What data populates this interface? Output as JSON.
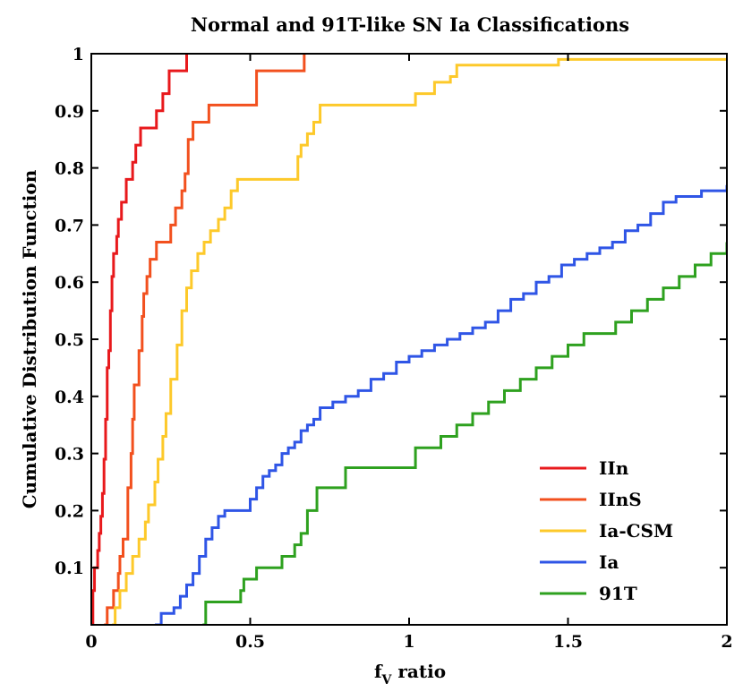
{
  "chart_data": {
    "type": "line",
    "step": true,
    "title": "Normal and 91T-like SN Ia Classifications",
    "xlabel_main": "f",
    "xlabel_sub": "V",
    "xlabel_rest": " ratio",
    "ylabel": "Cumulative Distribution Function",
    "xlim": [
      0,
      2
    ],
    "ylim": [
      0,
      1
    ],
    "xticks": [
      0,
      0.5,
      1,
      1.5,
      2
    ],
    "xtick_labels": [
      "0",
      "0.5",
      "1",
      "1.5",
      "2"
    ],
    "yticks": [
      0.1,
      0.2,
      0.3,
      0.4,
      0.5,
      0.6,
      0.7,
      0.8,
      0.9,
      1
    ],
    "ytick_labels": [
      "0.1",
      "0.2",
      "0.3",
      "0.4",
      "0.5",
      "0.6",
      "0.7",
      "0.8",
      "0.9",
      "1"
    ],
    "legend_position": "bottom-right",
    "series": [
      {
        "name": "IIn",
        "color": "#e8191c",
        "x": [
          0.0,
          0.005,
          0.01,
          0.02,
          0.025,
          0.03,
          0.035,
          0.04,
          0.045,
          0.05,
          0.055,
          0.06,
          0.065,
          0.07,
          0.075,
          0.08,
          0.085,
          0.095,
          0.11,
          0.13,
          0.14,
          0.155,
          0.175,
          0.205,
          0.225,
          0.245,
          0.275,
          0.3
        ],
        "y": [
          0.0,
          0.06,
          0.1,
          0.13,
          0.16,
          0.19,
          0.23,
          0.29,
          0.36,
          0.45,
          0.48,
          0.55,
          0.61,
          0.65,
          0.65,
          0.68,
          0.71,
          0.74,
          0.78,
          0.81,
          0.84,
          0.87,
          0.87,
          0.9,
          0.93,
          0.97,
          0.97,
          1.0
        ]
      },
      {
        "name": "IInS",
        "color": "#f2501e",
        "x": [
          0.04,
          0.05,
          0.065,
          0.07,
          0.085,
          0.09,
          0.1,
          0.115,
          0.125,
          0.13,
          0.135,
          0.15,
          0.16,
          0.165,
          0.175,
          0.18,
          0.185,
          0.205,
          0.25,
          0.265,
          0.285,
          0.295,
          0.305,
          0.32,
          0.325,
          0.37,
          0.46,
          0.52,
          0.57,
          0.67
        ],
        "y": [
          0.0,
          0.03,
          0.03,
          0.06,
          0.09,
          0.12,
          0.15,
          0.24,
          0.3,
          0.36,
          0.42,
          0.48,
          0.54,
          0.58,
          0.61,
          0.61,
          0.64,
          0.67,
          0.7,
          0.73,
          0.76,
          0.79,
          0.85,
          0.88,
          0.88,
          0.91,
          0.91,
          0.97,
          0.97,
          1.0
        ]
      },
      {
        "name": "Ia-CSM",
        "color": "#fdc92a",
        "x": [
          0.065,
          0.075,
          0.09,
          0.11,
          0.13,
          0.15,
          0.17,
          0.18,
          0.2,
          0.21,
          0.225,
          0.235,
          0.25,
          0.27,
          0.285,
          0.3,
          0.315,
          0.335,
          0.355,
          0.375,
          0.4,
          0.42,
          0.44,
          0.46,
          0.47,
          0.48,
          0.49,
          0.52,
          0.56,
          0.6,
          0.65,
          0.66,
          0.68,
          0.7,
          0.72,
          0.75,
          1.0,
          1.02,
          1.08,
          1.13,
          1.15,
          1.2,
          1.45,
          1.47,
          2.0
        ],
        "y": [
          0.0,
          0.03,
          0.06,
          0.09,
          0.12,
          0.15,
          0.18,
          0.21,
          0.25,
          0.29,
          0.33,
          0.37,
          0.43,
          0.49,
          0.55,
          0.59,
          0.62,
          0.65,
          0.67,
          0.69,
          0.71,
          0.73,
          0.76,
          0.78,
          0.78,
          0.78,
          0.78,
          0.78,
          0.78,
          0.78,
          0.82,
          0.84,
          0.86,
          0.88,
          0.91,
          0.91,
          0.91,
          0.93,
          0.95,
          0.96,
          0.98,
          0.98,
          0.98,
          0.99,
          0.99
        ]
      },
      {
        "name": "Ia",
        "color": "#2f55e6",
        "x": [
          0.2,
          0.22,
          0.26,
          0.28,
          0.3,
          0.32,
          0.34,
          0.36,
          0.38,
          0.4,
          0.42,
          0.44,
          0.46,
          0.5,
          0.52,
          0.54,
          0.56,
          0.58,
          0.6,
          0.62,
          0.64,
          0.66,
          0.68,
          0.7,
          0.72,
          0.74,
          0.76,
          0.8,
          0.84,
          0.88,
          0.92,
          0.96,
          1.0,
          1.04,
          1.08,
          1.12,
          1.16,
          1.2,
          1.24,
          1.28,
          1.32,
          1.36,
          1.4,
          1.44,
          1.48,
          1.52,
          1.56,
          1.6,
          1.64,
          1.68,
          1.72,
          1.76,
          1.8,
          1.84,
          1.88,
          1.92,
          1.96,
          2.0
        ],
        "y": [
          0.0,
          0.02,
          0.03,
          0.05,
          0.07,
          0.09,
          0.12,
          0.15,
          0.17,
          0.19,
          0.2,
          0.2,
          0.2,
          0.22,
          0.24,
          0.26,
          0.27,
          0.28,
          0.3,
          0.31,
          0.32,
          0.34,
          0.35,
          0.36,
          0.38,
          0.38,
          0.39,
          0.4,
          0.41,
          0.43,
          0.44,
          0.46,
          0.47,
          0.48,
          0.49,
          0.5,
          0.51,
          0.52,
          0.53,
          0.55,
          0.57,
          0.58,
          0.6,
          0.61,
          0.63,
          0.64,
          0.65,
          0.66,
          0.67,
          0.69,
          0.7,
          0.72,
          0.74,
          0.75,
          0.75,
          0.76,
          0.76,
          0.77
        ]
      },
      {
        "name": "91T",
        "color": "#2ea11f",
        "x": [
          0.35,
          0.36,
          0.47,
          0.48,
          0.52,
          0.58,
          0.6,
          0.64,
          0.66,
          0.68,
          0.71,
          0.8,
          0.9,
          1.0,
          1.02,
          1.1,
          1.15,
          1.2,
          1.25,
          1.3,
          1.35,
          1.4,
          1.45,
          1.5,
          1.55,
          1.6,
          1.65,
          1.7,
          1.75,
          1.8,
          1.85,
          1.9,
          1.95,
          1.98,
          2.0
        ],
        "y": [
          0.0,
          0.04,
          0.06,
          0.08,
          0.1,
          0.1,
          0.12,
          0.14,
          0.16,
          0.2,
          0.24,
          0.275,
          0.275,
          0.275,
          0.31,
          0.33,
          0.35,
          0.37,
          0.39,
          0.41,
          0.43,
          0.45,
          0.47,
          0.49,
          0.51,
          0.51,
          0.53,
          0.55,
          0.57,
          0.59,
          0.61,
          0.63,
          0.65,
          0.65,
          0.67
        ]
      }
    ]
  }
}
